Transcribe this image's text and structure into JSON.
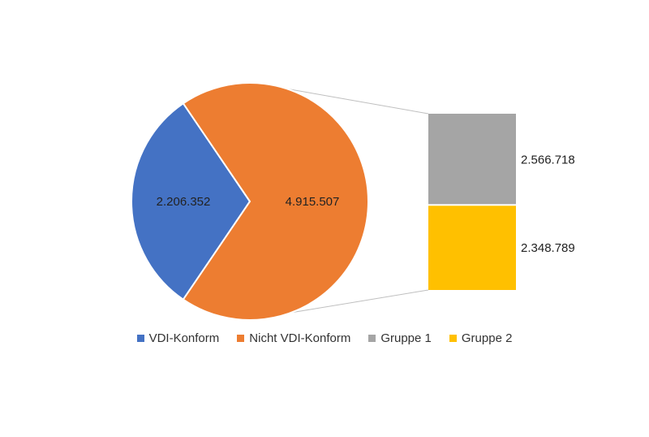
{
  "chart_data": {
    "type": "pie",
    "subtype": "bar-of-pie",
    "pie": {
      "slices": [
        {
          "label": "VDI-Konform",
          "value": 2206352,
          "value_label": "2.206.352",
          "color": "#4472C4"
        },
        {
          "label": "Nicht VDI-Konform",
          "value": 4915507,
          "value_label": "4.915.507",
          "color": "#ED7D31"
        }
      ]
    },
    "bar": {
      "breakdown_of": "Nicht VDI-Konform",
      "segments": [
        {
          "label": "Gruppe 1",
          "value": 2566718,
          "value_label": "2.566.718",
          "color": "#A5A5A5"
        },
        {
          "label": "Gruppe 2",
          "value": 2348789,
          "value_label": "2.348.789",
          "color": "#FFC000"
        }
      ]
    },
    "legend": {
      "position": "bottom",
      "items": [
        {
          "label": "VDI-Konform",
          "color": "#4472C4"
        },
        {
          "label": "Nicht VDI-Konform",
          "color": "#ED7D31"
        },
        {
          "label": "Gruppe 1",
          "color": "#A5A5A5"
        },
        {
          "label": "Gruppe 2",
          "color": "#FFC000"
        }
      ]
    }
  }
}
